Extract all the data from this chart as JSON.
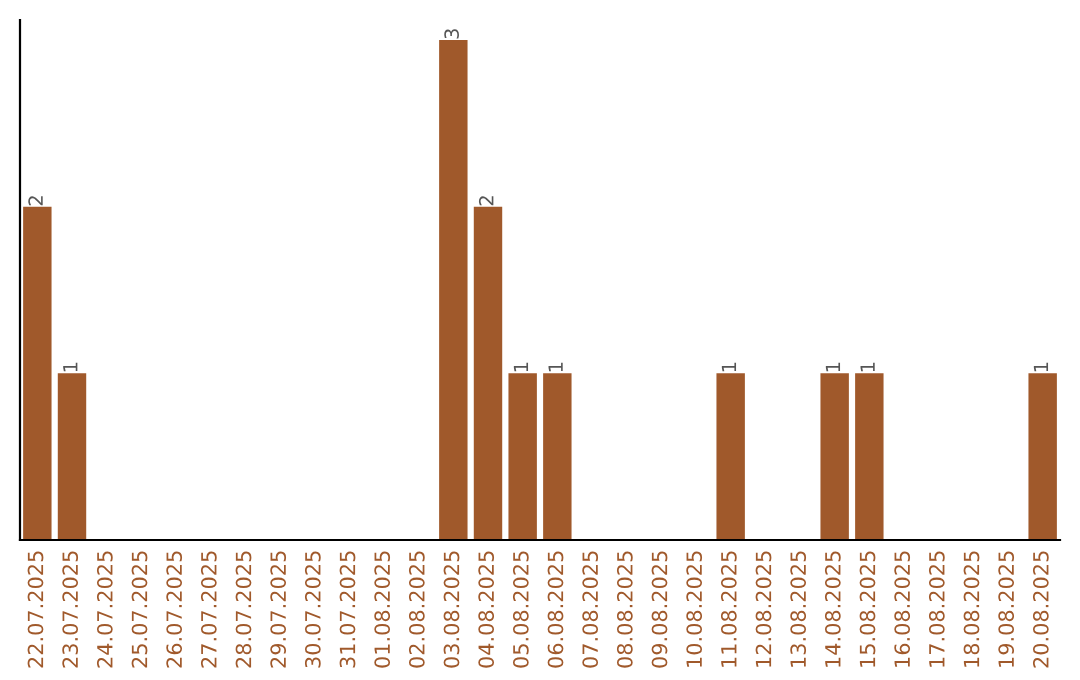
{
  "chart_data": {
    "type": "bar",
    "categories": [
      "22.07.2025",
      "23.07.2025",
      "24.07.2025",
      "25.07.2025",
      "26.07.2025",
      "27.07.2025",
      "28.07.2025",
      "29.07.2025",
      "30.07.2025",
      "31.07.2025",
      "01.08.2025",
      "02.08.2025",
      "03.08.2025",
      "04.08.2025",
      "05.08.2025",
      "06.08.2025",
      "07.08.2025",
      "08.08.2025",
      "09.08.2025",
      "10.08.2025",
      "11.08.2025",
      "12.08.2025",
      "13.08.2025",
      "14.08.2025",
      "15.08.2025",
      "16.08.2025",
      "17.08.2025",
      "18.08.2025",
      "19.08.2025",
      "20.08.2025"
    ],
    "values": [
      2,
      1,
      0,
      0,
      0,
      0,
      0,
      0,
      0,
      0,
      0,
      0,
      3,
      2,
      1,
      1,
      0,
      0,
      0,
      0,
      1,
      0,
      0,
      1,
      1,
      0,
      0,
      0,
      0,
      1
    ],
    "value_labels": [
      "2",
      "1",
      null,
      null,
      null,
      null,
      null,
      null,
      null,
      null,
      null,
      null,
      "3",
      "2",
      "1",
      "1",
      null,
      null,
      null,
      null,
      "1",
      null,
      null,
      "1",
      "1",
      null,
      null,
      null,
      null,
      "1"
    ],
    "color": "#a0592b",
    "tick_labels": "x",
    "grid": false
  }
}
